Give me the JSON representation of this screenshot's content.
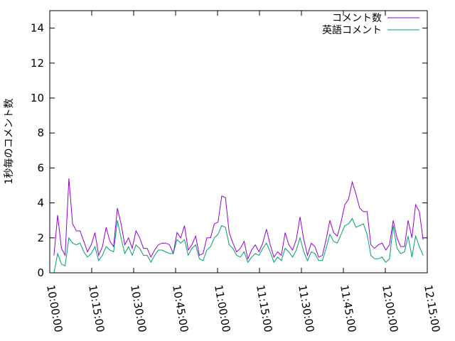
{
  "chart_data": {
    "type": "line",
    "title": "",
    "xlabel": "",
    "ylabel": "1秒毎のコメント数",
    "xlim_minutes": [
      600,
      735
    ],
    "ylim": [
      0,
      15
    ],
    "grid": false,
    "legend_position": "top-right",
    "x_ticks": [
      "10:00:00",
      "10:15:00",
      "10:30:00",
      "10:45:00",
      "11:00:00",
      "11:15:00",
      "11:30:00",
      "11:45:00",
      "12:00:00",
      "12:15:00"
    ],
    "y_ticks": [
      "0",
      "2",
      "4",
      "6",
      "8",
      "10",
      "12",
      "14"
    ],
    "series": [
      {
        "name": "コメント数",
        "color": "#9400d3",
        "values": [
          1.0,
          3.3,
          1.4,
          1.0,
          5.4,
          2.8,
          2.4,
          2.4,
          1.8,
          1.2,
          1.6,
          2.3,
          1.0,
          1.5,
          2.6,
          1.8,
          1.5,
          3.7,
          2.8,
          1.6,
          2.0,
          1.4,
          2.4,
          2.0,
          1.4,
          1.4,
          0.9,
          1.3,
          1.6,
          1.7,
          1.7,
          1.6,
          1.1,
          2.3,
          2.0,
          2.7,
          1.3,
          1.6,
          2.1,
          1.0,
          1.1,
          2.0,
          2.0,
          2.8,
          2.9,
          4.4,
          4.3,
          2.3,
          1.7,
          1.2,
          1.4,
          1.8,
          0.8,
          1.3,
          1.6,
          1.2,
          1.7,
          2.5,
          1.6,
          0.9,
          1.2,
          1.0,
          2.3,
          1.6,
          1.3,
          1.9,
          3.2,
          1.9,
          1.0,
          1.7,
          1.5,
          0.9,
          1.0,
          1.9,
          3.0,
          2.3,
          2.1,
          2.9,
          3.9,
          4.2,
          5.2,
          4.5,
          3.7,
          3.5,
          3.5,
          1.6,
          1.4,
          1.6,
          1.7,
          1.3,
          1.6,
          3.0,
          2.0,
          1.5,
          1.5,
          3.0,
          2.0,
          3.9,
          3.5,
          1.9
        ]
      },
      {
        "name": "英語コメント",
        "color": "#009e73",
        "values": [
          0.0,
          1.1,
          0.5,
          0.4,
          2.0,
          1.7,
          1.6,
          1.7,
          1.2,
          0.9,
          1.1,
          1.5,
          0.7,
          1.0,
          1.5,
          1.3,
          1.2,
          3.0,
          2.0,
          1.1,
          1.5,
          1.0,
          1.6,
          1.4,
          1.0,
          1.0,
          0.6,
          1.0,
          1.3,
          1.3,
          1.2,
          1.1,
          1.1,
          1.9,
          1.7,
          1.9,
          1.0,
          1.4,
          1.6,
          0.8,
          0.7,
          1.3,
          1.5,
          2.0,
          2.2,
          2.7,
          2.6,
          1.6,
          1.4,
          1.0,
          0.9,
          1.2,
          0.6,
          0.9,
          1.1,
          1.0,
          1.4,
          1.7,
          1.2,
          0.6,
          0.9,
          0.7,
          1.4,
          1.2,
          0.9,
          1.3,
          2.0,
          1.2,
          0.7,
          1.2,
          1.1,
          0.7,
          0.7,
          1.4,
          2.2,
          1.8,
          1.7,
          2.2,
          2.7,
          2.8,
          3.1,
          2.6,
          2.7,
          2.8,
          2.2,
          1.0,
          0.8,
          0.8,
          0.9,
          0.6,
          0.8,
          2.7,
          1.4,
          1.1,
          1.2,
          2.1,
          0.9,
          2.1,
          1.5,
          1.0
        ]
      }
    ]
  }
}
